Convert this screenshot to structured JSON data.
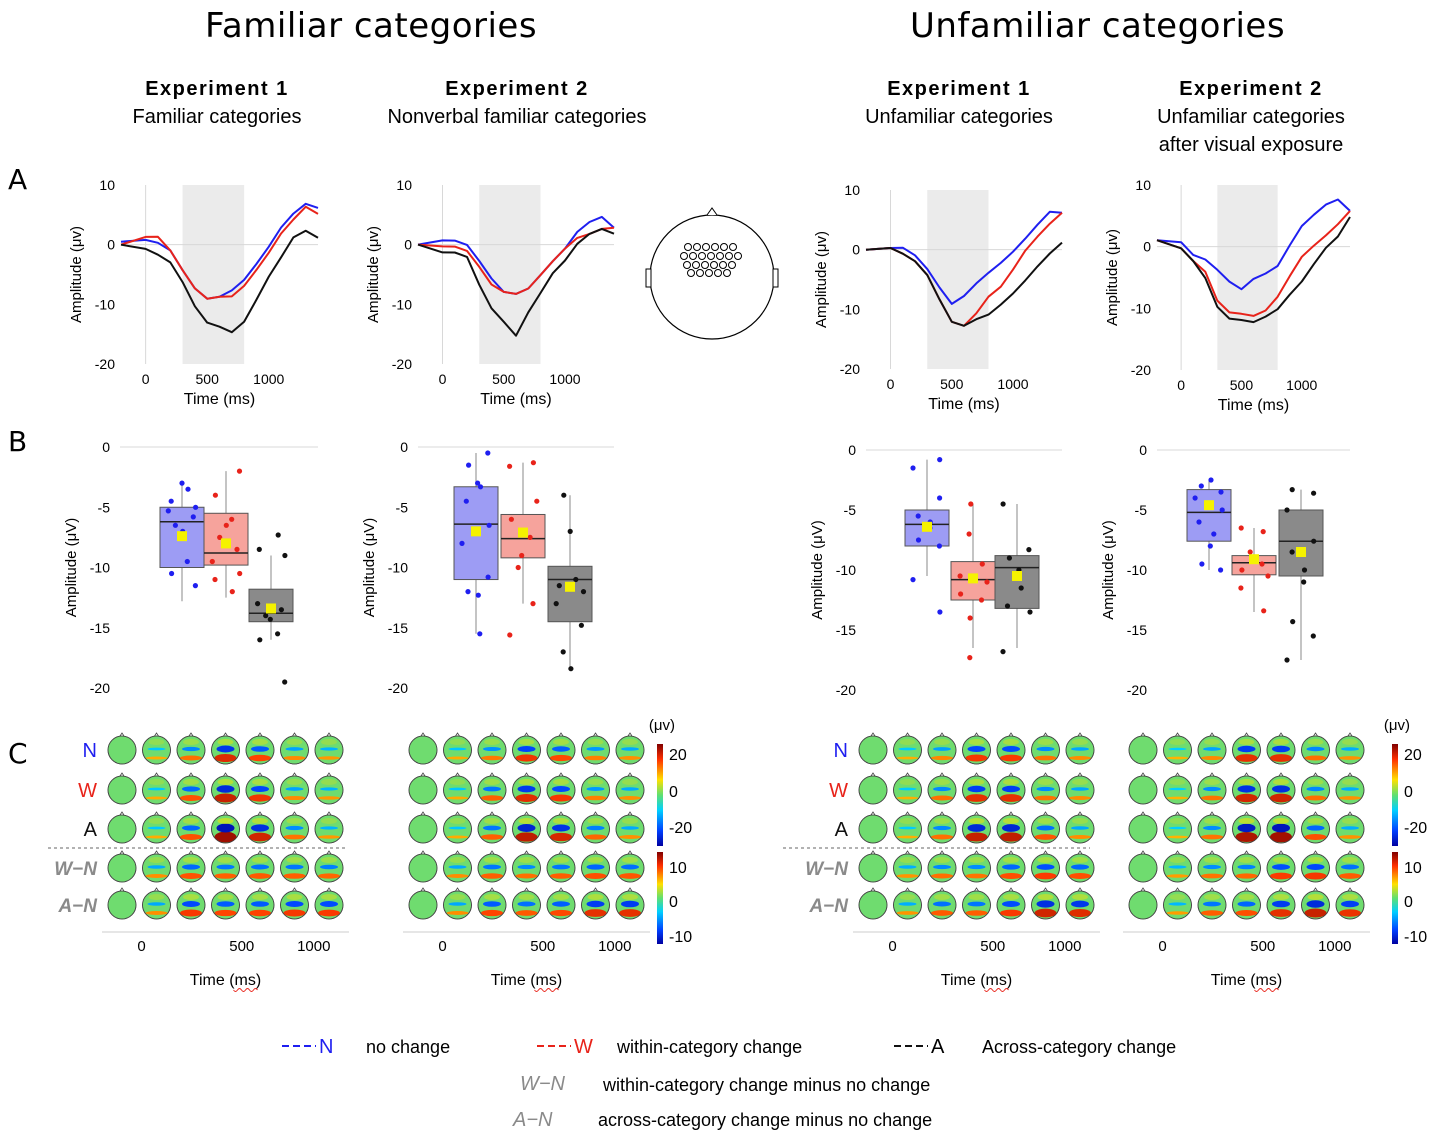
{
  "titles": {
    "familiar": "Familiar categories",
    "unfamiliar": "Unfamiliar categories"
  },
  "panels": [
    {
      "exp": "Experiment 1",
      "sub1": "Familiar categories",
      "sub2": ""
    },
    {
      "exp": "Experiment 2",
      "sub1": "Nonverbal familiar categories",
      "sub2": ""
    },
    {
      "exp": "Experiment 1",
      "sub1": "Unfamiliar categories",
      "sub2": ""
    },
    {
      "exp": "Experiment 2",
      "sub1": "Unfamiliar categories",
      "sub2": "after visual exposure"
    }
  ],
  "row_labels": {
    "a": "A",
    "b": "B",
    "c": "C"
  },
  "axis": {
    "amp_label": "Amplitude (μv)",
    "amp_label_b": "Amplitude (μV)",
    "time_label": "Time (ms)",
    "topo_unit": "(μv)"
  },
  "cond_labels": [
    "N",
    "W",
    "A",
    "W−N",
    "A−N"
  ],
  "colorbar": {
    "top_ticks": [
      "20",
      "0",
      "-20"
    ],
    "bottom_ticks": [
      "10",
      "0",
      "-10"
    ]
  },
  "legend": {
    "n_key": "N",
    "n_text": "no change",
    "w_key": "W",
    "w_text": "within-category change",
    "a_key": "A",
    "a_text": "Across-category change",
    "wn_key": "W−N",
    "wn_text": "within-category change minus no change",
    "an_key": "A−N",
    "an_text": "across-category change minus no change"
  },
  "colors": {
    "N": "#1f1ff0",
    "W": "#e8231a",
    "A": "#111111",
    "N_box": "#9d9cf4",
    "W_box": "#f6a39c",
    "A_box": "#8a8a8a",
    "mean": "#f5f200",
    "shade": "#ebebeb"
  },
  "chart_data": [
    {
      "type": "line",
      "panel": "A",
      "xlim": [
        -200,
        1400
      ],
      "ylim": [
        -20,
        10
      ],
      "xticks": [
        0,
        500,
        1000
      ],
      "yticks": [
        10,
        0,
        -10,
        -20
      ],
      "shaded_window_ms": [
        300,
        800
      ],
      "series": [
        {
          "name": "N",
          "x": [
            -200,
            0,
            100,
            200,
            300,
            400,
            500,
            600,
            700,
            800,
            900,
            1000,
            1100,
            1200,
            1300,
            1400
          ],
          "y": [
            0.5,
            0.5,
            0,
            -1,
            -4,
            -7,
            -9,
            -9,
            -8,
            -6,
            -3,
            0,
            3,
            5,
            6.5,
            6
          ]
        },
        {
          "name": "W",
          "x": [
            -200,
            0,
            100,
            200,
            300,
            400,
            500,
            600,
            700,
            800,
            900,
            1000,
            1100,
            1200,
            1300,
            1400
          ],
          "y": [
            0,
            1,
            1,
            -1,
            -4,
            -7,
            -9,
            -9,
            -9,
            -7,
            -4,
            -1,
            2,
            4,
            6,
            5
          ]
        },
        {
          "name": "A",
          "x": [
            -200,
            0,
            100,
            200,
            300,
            400,
            500,
            600,
            700,
            800,
            900,
            1000,
            1100,
            1200,
            1300,
            1400
          ],
          "y": [
            0,
            -1,
            -2,
            -3,
            -6,
            -10,
            -13,
            -14,
            -15,
            -13,
            -9,
            -5,
            -2,
            1,
            2,
            1
          ]
        }
      ]
    },
    {
      "type": "line",
      "panel": "A",
      "xlim": [
        -200,
        1400
      ],
      "ylim": [
        -20,
        10
      ],
      "xticks": [
        0,
        500,
        1000
      ],
      "yticks": [
        10,
        0,
        -10,
        -20
      ],
      "shaded_window_ms": [
        300,
        800
      ],
      "series": [
        {
          "name": "N",
          "x": [
            -200,
            0,
            100,
            200,
            300,
            400,
            500,
            600,
            700,
            800,
            900,
            1000,
            1100,
            1200,
            1300,
            1400
          ],
          "y": [
            0,
            1,
            1,
            0,
            -3,
            -6,
            -8,
            -8,
            -7,
            -5,
            -3,
            -1,
            2,
            4,
            5,
            3
          ]
        },
        {
          "name": "W",
          "x": [
            -200,
            0,
            100,
            200,
            300,
            400,
            500,
            600,
            700,
            800,
            900,
            1000,
            1100,
            1200,
            1300,
            1400
          ],
          "y": [
            0,
            0,
            0,
            -1,
            -4,
            -7,
            -8,
            -8,
            -7,
            -5,
            -3,
            -1,
            1,
            2,
            3,
            3
          ]
        },
        {
          "name": "A",
          "x": [
            -200,
            0,
            100,
            200,
            300,
            400,
            500,
            600,
            700,
            800,
            900,
            1000,
            1100,
            1200,
            1300,
            1400
          ],
          "y": [
            0,
            -1,
            -1,
            -2,
            -7,
            -11,
            -13,
            -15,
            -11,
            -8,
            -5,
            -3,
            0,
            2,
            3,
            2
          ]
        }
      ]
    },
    {
      "type": "line",
      "panel": "A",
      "xlim": [
        -200,
        1400
      ],
      "ylim": [
        -20,
        10
      ],
      "xticks": [
        0,
        500,
        1000
      ],
      "yticks": [
        10,
        0,
        -10,
        -20
      ],
      "shaded_window_ms": [
        300,
        800
      ],
      "series": [
        {
          "name": "N",
          "x": [
            -200,
            0,
            100,
            200,
            300,
            400,
            500,
            600,
            700,
            800,
            900,
            1000,
            1100,
            1200,
            1300,
            1400
          ],
          "y": [
            0,
            0,
            0,
            -1,
            -3,
            -6,
            -9,
            -8,
            -6,
            -4,
            -2,
            0,
            2,
            4,
            6,
            6
          ]
        },
        {
          "name": "W",
          "x": [
            -200,
            0,
            100,
            200,
            300,
            400,
            500,
            600,
            700,
            800,
            900,
            1000,
            1100,
            1200,
            1300,
            1400
          ],
          "y": [
            0,
            0,
            -1,
            -2,
            -4,
            -8,
            -12,
            -13,
            -11,
            -8,
            -6,
            -3,
            0,
            2,
            4,
            6
          ]
        },
        {
          "name": "A",
          "x": [
            -200,
            0,
            100,
            200,
            300,
            400,
            500,
            600,
            700,
            800,
            900,
            1000,
            1100,
            1200,
            1300,
            1400
          ],
          "y": [
            0,
            0,
            -1,
            -2,
            -4,
            -8,
            -12,
            -13,
            -12,
            -11,
            -9,
            -7,
            -5,
            -3,
            -1,
            1
          ]
        }
      ]
    },
    {
      "type": "line",
      "panel": "A",
      "xlim": [
        -200,
        1400
      ],
      "ylim": [
        -20,
        10
      ],
      "xticks": [
        0,
        500,
        1000
      ],
      "yticks": [
        10,
        0,
        -10,
        -20
      ],
      "shaded_window_ms": [
        300,
        800
      ],
      "series": [
        {
          "name": "N",
          "x": [
            -200,
            0,
            100,
            200,
            300,
            400,
            500,
            600,
            700,
            800,
            900,
            1000,
            1100,
            1200,
            1300,
            1400
          ],
          "y": [
            1,
            1,
            -1,
            -2,
            -4,
            -6,
            -7,
            -5,
            -4,
            -3,
            0,
            3,
            5,
            7,
            8,
            6
          ]
        },
        {
          "name": "W",
          "x": [
            -200,
            0,
            100,
            200,
            300,
            400,
            500,
            600,
            700,
            800,
            900,
            1000,
            1100,
            1200,
            1300,
            1400
          ],
          "y": [
            1,
            0,
            -2,
            -4,
            -9,
            -11,
            -11,
            -11,
            -10,
            -8,
            -5,
            -2,
            0,
            2,
            4,
            6
          ]
        },
        {
          "name": "A",
          "x": [
            -200,
            0,
            100,
            200,
            300,
            400,
            500,
            600,
            700,
            800,
            900,
            1000,
            1100,
            1200,
            1300,
            1400
          ],
          "y": [
            1,
            0,
            -2,
            -5,
            -10,
            -12,
            -12,
            -12,
            -11,
            -10,
            -8,
            -6,
            -3,
            0,
            2,
            5
          ]
        }
      ]
    },
    {
      "type": "box",
      "panel": "B",
      "ylim": [
        -20,
        0
      ],
      "yticks": [
        0,
        -5,
        -10,
        -15,
        -20
      ],
      "groups": [
        {
          "name": "N",
          "q1": -10,
          "median": -6.2,
          "q3": -5,
          "whisker_low": -12.8,
          "whisker_high": -3,
          "mean": -7.4,
          "points": [
            -3,
            -3.5,
            -4.5,
            -5,
            -5.3,
            -5.8,
            -6.5,
            -7,
            -9.5,
            -10.5,
            -11.5
          ]
        },
        {
          "name": "W",
          "q1": -9.8,
          "median": -8.8,
          "q3": -5.5,
          "whisker_low": -12.5,
          "whisker_high": -2,
          "mean": -8,
          "points": [
            -2,
            -4,
            -6,
            -6.5,
            -7.5,
            -8.5,
            -9.5,
            -10.5,
            -11,
            -12
          ]
        },
        {
          "name": "A",
          "q1": -14.5,
          "median": -13.8,
          "q3": -11.8,
          "whisker_low": -16,
          "whisker_high": -9,
          "mean": -13.4,
          "points": [
            -7.3,
            -8.5,
            -9,
            -13,
            -13.5,
            -14,
            -14.3,
            -15.5,
            -16,
            -19.5
          ]
        }
      ]
    },
    {
      "type": "box",
      "panel": "B",
      "ylim": [
        -20,
        0
      ],
      "yticks": [
        0,
        -5,
        -10,
        -15,
        -20
      ],
      "groups": [
        {
          "name": "N",
          "q1": -11,
          "median": -6.4,
          "q3": -3.3,
          "whisker_low": -15.5,
          "whisker_high": -0.5,
          "mean": -7,
          "points": [
            -0.5,
            -1.5,
            -3,
            -3.3,
            -4.5,
            -6.5,
            -8,
            -10.8,
            -12,
            -12.3,
            -15.5
          ]
        },
        {
          "name": "W",
          "q1": -9.2,
          "median": -7.6,
          "q3": -5.6,
          "whisker_low": -13,
          "whisker_high": -1.3,
          "mean": -7.1,
          "points": [
            -1.3,
            -1.6,
            -4.5,
            -6,
            -7.5,
            -9,
            -10,
            -13,
            -15.6
          ]
        },
        {
          "name": "A",
          "q1": -14.5,
          "median": -11,
          "q3": -9.9,
          "whisker_low": -18.5,
          "whisker_high": -4,
          "mean": -11.6,
          "points": [
            -4,
            -7,
            -11,
            -11.5,
            -12,
            -13,
            -14.8,
            -17,
            -18.4
          ]
        }
      ]
    },
    {
      "type": "box",
      "panel": "B",
      "ylim": [
        -20,
        0
      ],
      "yticks": [
        0,
        -5,
        -10,
        -15,
        -20
      ],
      "groups": [
        {
          "name": "N",
          "q1": -8,
          "median": -6.2,
          "q3": -5,
          "whisker_low": -10.5,
          "whisker_high": -0.8,
          "mean": -6.4,
          "points": [
            -0.8,
            -1.5,
            -4,
            -5.5,
            -6,
            -6.5,
            -7.5,
            -8,
            -10.8,
            -13.5
          ]
        },
        {
          "name": "W",
          "q1": -12.5,
          "median": -10.8,
          "q3": -9.3,
          "whisker_low": -16.5,
          "whisker_high": -4.5,
          "mean": -10.7,
          "points": [
            -4.5,
            -7,
            -9.5,
            -10.5,
            -11,
            -12,
            -12.5,
            -14,
            -17.3
          ]
        },
        {
          "name": "A",
          "q1": -13.2,
          "median": -9.8,
          "q3": -8.8,
          "whisker_low": -16.5,
          "whisker_high": -4.5,
          "mean": -10.5,
          "points": [
            -4.5,
            -8.3,
            -9,
            -10,
            -11.5,
            -13,
            -13.5,
            -16.8
          ]
        }
      ]
    },
    {
      "type": "box",
      "panel": "B",
      "ylim": [
        -20,
        0
      ],
      "yticks": [
        0,
        -5,
        -10,
        -15,
        -20
      ],
      "groups": [
        {
          "name": "N",
          "q1": -7.6,
          "median": -5.2,
          "q3": -3.3,
          "whisker_low": -10,
          "whisker_high": -2.5,
          "mean": -4.6,
          "points": [
            -2.5,
            -3,
            -3.5,
            -4,
            -5,
            -6,
            -7,
            -8,
            -9.5,
            -10
          ]
        },
        {
          "name": "W",
          "q1": -10.4,
          "median": -9.4,
          "q3": -8.8,
          "whisker_low": -13.5,
          "whisker_high": -6.5,
          "mean": -9.1,
          "points": [
            -6.5,
            -6.8,
            -8.5,
            -9,
            -9.5,
            -10,
            -10.5,
            -11.5,
            -13.4
          ]
        },
        {
          "name": "A",
          "q1": -10.5,
          "median": -7.6,
          "q3": -5,
          "whisker_low": -17.5,
          "whisker_high": -3.3,
          "mean": -8.5,
          "points": [
            -3.3,
            -3.6,
            -5,
            -7.6,
            -8.5,
            -10,
            -11,
            -14.3,
            -15.5,
            -17.5
          ]
        }
      ]
    }
  ],
  "topo_time_ticks": [
    "0",
    "500",
    "1000"
  ]
}
